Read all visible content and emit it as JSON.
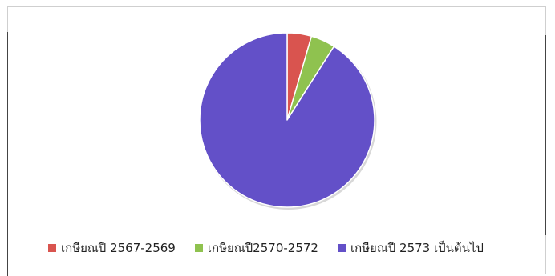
{
  "chart_data": {
    "type": "pie",
    "start_angle_deg": 0,
    "direction": "clockwise",
    "slices": [
      {
        "label": "เกษียณปี 2567-2569",
        "value": 4.5,
        "color": "#d9544f"
      },
      {
        "label": "เกษียณปี2570-2572",
        "value": 4.5,
        "color": "#8fc24f"
      },
      {
        "label": "เกษียณปี 2573 เป็นต้นไป",
        "value": 91.0,
        "color": "#6350c8"
      }
    ],
    "legend_position": "bottom"
  }
}
